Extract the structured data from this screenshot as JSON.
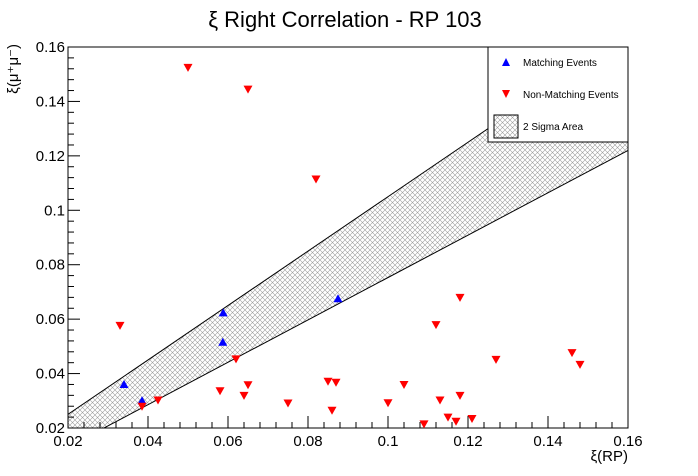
{
  "chart_data": {
    "type": "scatter",
    "title": "ξ Right Correlation - RP 103",
    "xlabel": "ξ(RP)",
    "ylabel": "ξ(μ⁺μ⁻)",
    "xlim": [
      0.02,
      0.16
    ],
    "ylim": [
      0.02,
      0.16
    ],
    "x_ticks": [
      "0.02",
      "0.04",
      "0.06",
      "0.08",
      "0.1",
      "0.12",
      "0.14",
      "0.16"
    ],
    "y_ticks": [
      "0.02",
      "0.04",
      "0.06",
      "0.08",
      "0.1",
      "0.12",
      "0.14",
      "0.16"
    ],
    "legend_position": "top-right",
    "series": [
      {
        "name": "Matching Events",
        "marker": "triangle-up",
        "color": "#0000ff",
        "x": [
          0.034,
          0.0385,
          0.0587,
          0.0588,
          0.0875
        ],
        "y": [
          0.036,
          0.03,
          0.0515,
          0.0623,
          0.0675
        ]
      },
      {
        "name": "Non-Matching Events",
        "marker": "triangle-down",
        "color": "#ff0000",
        "x": [
          0.033,
          0.05,
          0.065,
          0.082,
          0.0385,
          0.0425,
          0.058,
          0.062,
          0.064,
          0.065,
          0.075,
          0.085,
          0.086,
          0.087,
          0.1,
          0.104,
          0.109,
          0.112,
          0.113,
          0.115,
          0.117,
          0.118,
          0.118,
          0.121,
          0.127,
          0.146,
          0.148
        ],
        "y": [
          0.0577,
          0.1525,
          0.1445,
          0.1115,
          0.028,
          0.0303,
          0.0337,
          0.0454,
          0.032,
          0.0359,
          0.0292,
          0.0372,
          0.0265,
          0.0368,
          0.0293,
          0.036,
          0.0215,
          0.058,
          0.0303,
          0.024,
          0.0225,
          0.068,
          0.032,
          0.0235,
          0.0452,
          0.0477,
          0.0434
        ]
      }
    ],
    "band": {
      "name": "2 Sigma Area",
      "upper": {
        "x": [
          0.02,
          0.16
        ],
        "y": [
          0.025,
          0.165
        ]
      },
      "lower": {
        "x": [
          0.02,
          0.16
        ],
        "y": [
          0.013,
          0.122
        ]
      }
    }
  }
}
